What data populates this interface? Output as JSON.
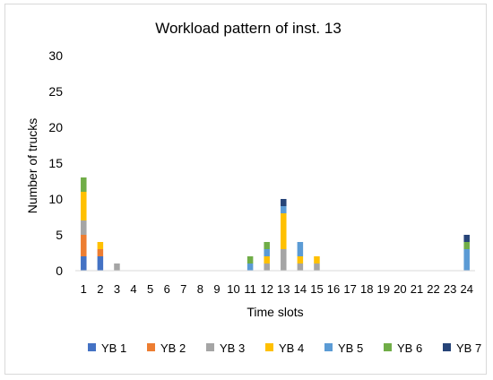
{
  "chart_data": {
    "type": "bar",
    "stacked": true,
    "title": "Workload pattern of inst. 13",
    "xlabel": "Time slots",
    "ylabel": "Number of trucks",
    "ylim": [
      0,
      30
    ],
    "yticks": [
      0,
      5,
      10,
      15,
      20,
      25,
      30
    ],
    "grid": false,
    "legend_position": "bottom",
    "categories": [
      "1",
      "2",
      "3",
      "4",
      "5",
      "6",
      "7",
      "8",
      "9",
      "10",
      "11",
      "12",
      "13",
      "14",
      "15",
      "16",
      "17",
      "18",
      "19",
      "20",
      "21",
      "22",
      "23",
      "24"
    ],
    "series": [
      {
        "name": "YB 1",
        "color": "#4472C4",
        "values": [
          2,
          2,
          0,
          0,
          0,
          0,
          0,
          0,
          0,
          0,
          0,
          0,
          0,
          0,
          0,
          0,
          0,
          0,
          0,
          0,
          0,
          0,
          0,
          0
        ]
      },
      {
        "name": "YB 2",
        "color": "#ED7D31",
        "values": [
          3,
          1,
          0,
          0,
          0,
          0,
          0,
          0,
          0,
          0,
          0,
          0,
          0,
          0,
          0,
          0,
          0,
          0,
          0,
          0,
          0,
          0,
          0,
          0
        ]
      },
      {
        "name": "YB 3",
        "color": "#A5A5A5",
        "values": [
          2,
          0,
          1,
          0,
          0,
          0,
          0,
          0,
          0,
          0,
          0,
          1,
          3,
          1,
          1,
          0,
          0,
          0,
          0,
          0,
          0,
          0,
          0,
          0
        ]
      },
      {
        "name": "YB 4",
        "color": "#FFC000",
        "values": [
          4,
          1,
          0,
          0,
          0,
          0,
          0,
          0,
          0,
          0,
          0,
          1,
          5,
          1,
          1,
          0,
          0,
          0,
          0,
          0,
          0,
          0,
          0,
          0
        ]
      },
      {
        "name": "YB 5",
        "color": "#5B9BD5",
        "values": [
          0,
          0,
          0,
          0,
          0,
          0,
          0,
          0,
          0,
          0,
          1,
          1,
          1,
          2,
          0,
          0,
          0,
          0,
          0,
          0,
          0,
          0,
          0,
          3
        ]
      },
      {
        "name": "YB 6",
        "color": "#70AD47",
        "values": [
          2,
          0,
          0,
          0,
          0,
          0,
          0,
          0,
          0,
          0,
          1,
          1,
          0,
          0,
          0,
          0,
          0,
          0,
          0,
          0,
          0,
          0,
          0,
          1
        ]
      },
      {
        "name": "YB 7",
        "color": "#264478",
        "values": [
          0,
          0,
          0,
          0,
          0,
          0,
          0,
          0,
          0,
          0,
          0,
          0,
          1,
          0,
          0,
          0,
          0,
          0,
          0,
          0,
          0,
          0,
          0,
          1
        ]
      }
    ]
  }
}
